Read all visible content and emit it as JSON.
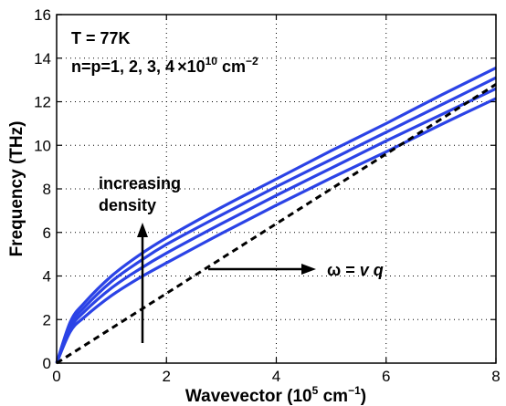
{
  "chart_data": {
    "type": "line",
    "xlabel": {
      "main": "Wavevector (10",
      "exp": "5",
      "mid": " cm",
      "exp2": "−1",
      "end": ")"
    },
    "ylabel": "Frequency (THz)",
    "xlim": [
      0,
      8
    ],
    "ylim": [
      0,
      16
    ],
    "x_ticks": [
      "0",
      "2",
      "4",
      "6",
      "8"
    ],
    "y_ticks": [
      "0",
      "2",
      "4",
      "6",
      "8",
      "10",
      "12",
      "14",
      "16"
    ],
    "grid": true,
    "series_color": "#2b43e6",
    "reference_color": "#000000",
    "series": [
      {
        "x": [
          0,
          0.25,
          0.5,
          1,
          1.5,
          2,
          3,
          4,
          5,
          6,
          7,
          8
        ],
        "y": [
          0,
          1.6,
          2.35,
          3.45,
          4.3,
          5.05,
          6.4,
          7.7,
          8.95,
          10.2,
          11.4,
          12.6
        ]
      },
      {
        "x": [
          0,
          0.25,
          0.5,
          1,
          1.5,
          2,
          3,
          4,
          5,
          6,
          7,
          8
        ],
        "y": [
          0,
          1.45,
          2.1,
          3.1,
          3.9,
          4.6,
          5.95,
          7.25,
          8.5,
          9.7,
          10.95,
          12.15
        ]
      },
      {
        "x": [
          0,
          0.25,
          0.5,
          1,
          1.5,
          2,
          3,
          4,
          5,
          6,
          7,
          8
        ],
        "y": [
          0,
          1.75,
          2.55,
          3.75,
          4.65,
          5.45,
          6.8,
          8.1,
          9.35,
          10.6,
          11.85,
          13.1
        ]
      },
      {
        "x": [
          0,
          0.25,
          0.5,
          1,
          1.5,
          2,
          3,
          4,
          5,
          6,
          7,
          8
        ],
        "y": [
          0,
          1.9,
          2.75,
          4.0,
          4.95,
          5.75,
          7.15,
          8.45,
          9.75,
          11.0,
          12.3,
          13.55
        ]
      }
    ],
    "reference_line": {
      "x": [
        0,
        8
      ],
      "y": [
        0,
        12.8
      ]
    },
    "annotations": {
      "temp": "T = 77K",
      "density_prefix": "n=p=1, 2, 3, 4",
      "density_times": "×",
      "density_base": "10",
      "density_exp": "10",
      "density_unit": " cm",
      "density_unit_exp": "−2",
      "increasing": "increasing",
      "density_word": "density",
      "omega_label": "ω = ",
      "omega_v": "v",
      "omega_q": " q"
    }
  }
}
